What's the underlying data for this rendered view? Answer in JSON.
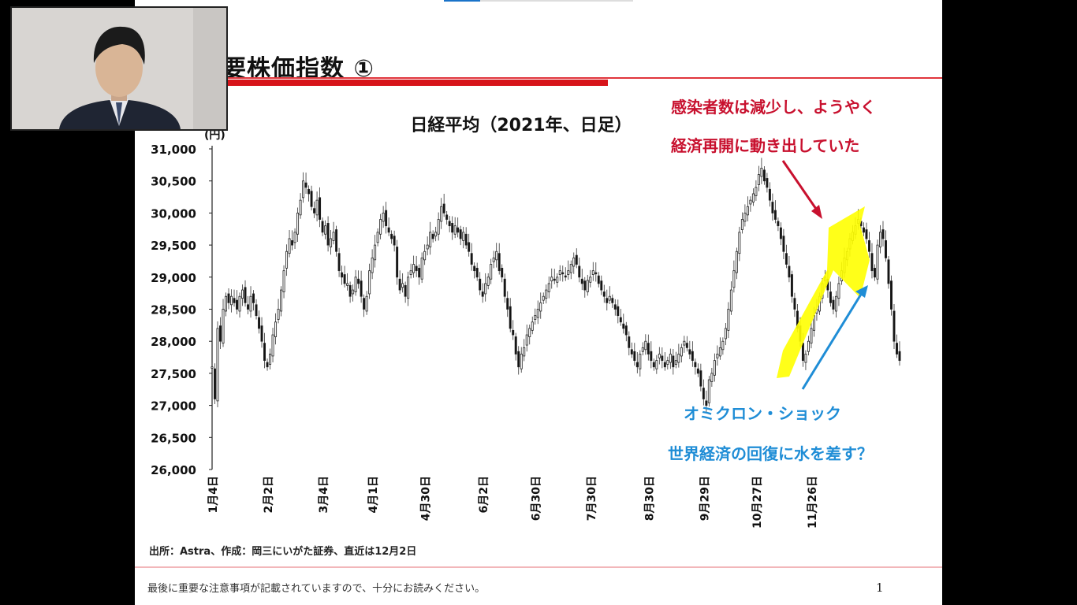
{
  "slide": {
    "title": "主要株価指数 ①",
    "footer_note": "最後に重要な注意事項が記載されていますので、十分にお読みください。",
    "page_number": "1"
  },
  "webcam": {
    "icon": "presenter-video"
  },
  "annotations": {
    "red_line1": "感染者数は減少し、ようやく",
    "red_line2": "経済再開に動き出していた",
    "blue_line1": "オミクロン・ショック",
    "blue_line2": "世界経済の回復に水を差す？",
    "highlight_color": "#ffff00",
    "red_color": "#c8102e",
    "blue_color": "#1f8dd6"
  },
  "chart_data": {
    "type": "candlestick",
    "title": "日経平均（2021年、日足）",
    "ylabel": "(円)",
    "ylim": [
      26000,
      31000
    ],
    "yticks": [
      "31,000",
      "30,500",
      "30,000",
      "29,500",
      "29,000",
      "28,500",
      "28,000",
      "27,500",
      "27,000",
      "26,500",
      "26,000"
    ],
    "yticks_values": [
      31000,
      30500,
      30000,
      29500,
      29000,
      28500,
      28000,
      27500,
      27000,
      26500,
      26000
    ],
    "xticks": [
      "1月4日",
      "2月2日",
      "3月4日",
      "4月1日",
      "4月30日",
      "6月2日",
      "6月30日",
      "7月30日",
      "8月30日",
      "9月29日",
      "10月27日",
      "11月26日"
    ],
    "grid": false,
    "source": "出所：Astra、作成：岡三にいがた証券、直近は12月2日",
    "series": [
      {
        "values": [
          27600,
          27100,
          28200,
          28000,
          28500,
          28700,
          28600,
          28700,
          28600,
          28500,
          28700,
          28800,
          28600,
          28500,
          28700,
          28600,
          28400,
          28200,
          28000,
          27700,
          27600,
          27800,
          28100,
          28300,
          28500,
          28800,
          29100,
          29400,
          29600,
          29500,
          29700,
          30000,
          30200,
          30500,
          30400,
          30300,
          30100,
          30000,
          30200,
          29900,
          29700,
          29800,
          29500,
          29600,
          29700,
          29400,
          29100,
          29000,
          28900,
          28900,
          28700,
          28800,
          29000,
          28900,
          28700,
          28500,
          28700,
          29100,
          29300,
          29500,
          29700,
          29900,
          30000,
          29800,
          29700,
          29600,
          29500,
          29000,
          28800,
          28900,
          28700,
          29000,
          29100,
          29200,
          29100,
          29000,
          29300,
          29400,
          29500,
          29700,
          29600,
          29700,
          29900,
          30100,
          30000,
          29900,
          29800,
          29700,
          29800,
          29700,
          29600,
          29700,
          29500,
          29400,
          29200,
          29100,
          29000,
          28800,
          28700,
          28900,
          29000,
          29200,
          29300,
          29400,
          29100,
          29000,
          28700,
          28500,
          28200,
          28100,
          27800,
          27600,
          27800,
          27900,
          28100,
          28200,
          28300,
          28400,
          28500,
          28600,
          28700,
          28800,
          28900,
          29000,
          28950,
          29000,
          29100,
          29050,
          29000,
          29100,
          29200,
          29300,
          29200,
          29000,
          28900,
          28800,
          28950,
          29000,
          29100,
          29050,
          28900,
          28800,
          28700,
          28600,
          28700,
          28600,
          28500,
          28400,
          28300,
          28200,
          28100,
          27900,
          27800,
          27700,
          27600,
          27800,
          27900,
          28000,
          27800,
          27700,
          27600,
          27700,
          27800,
          27700,
          27600,
          27700,
          27800,
          27600,
          27700,
          27800,
          27900,
          28000,
          27900,
          27800,
          27700,
          27600,
          27500,
          27300,
          27100,
          27000,
          27400,
          27500,
          27700,
          27800,
          27900,
          28000,
          28200,
          28500,
          28800,
          29100,
          29400,
          29700,
          29900,
          30000,
          30100,
          30200,
          30300,
          30400,
          30600,
          30700,
          30500,
          30400,
          30200,
          30000,
          29900,
          29800,
          29600,
          29400,
          29200,
          29000,
          28700,
          28500,
          28200,
          28000,
          27700,
          27800,
          28000,
          28200,
          28400,
          28500,
          28700,
          28900,
          29000,
          28800,
          28600,
          28500,
          28700,
          28900,
          29100,
          29300,
          29400,
          29600,
          29700,
          29800,
          29900,
          29800,
          29700,
          29600,
          29400,
          29100,
          29000,
          29500,
          29700,
          29600,
          29300,
          28900,
          28500,
          28000,
          27800,
          27700
        ]
      }
    ]
  }
}
